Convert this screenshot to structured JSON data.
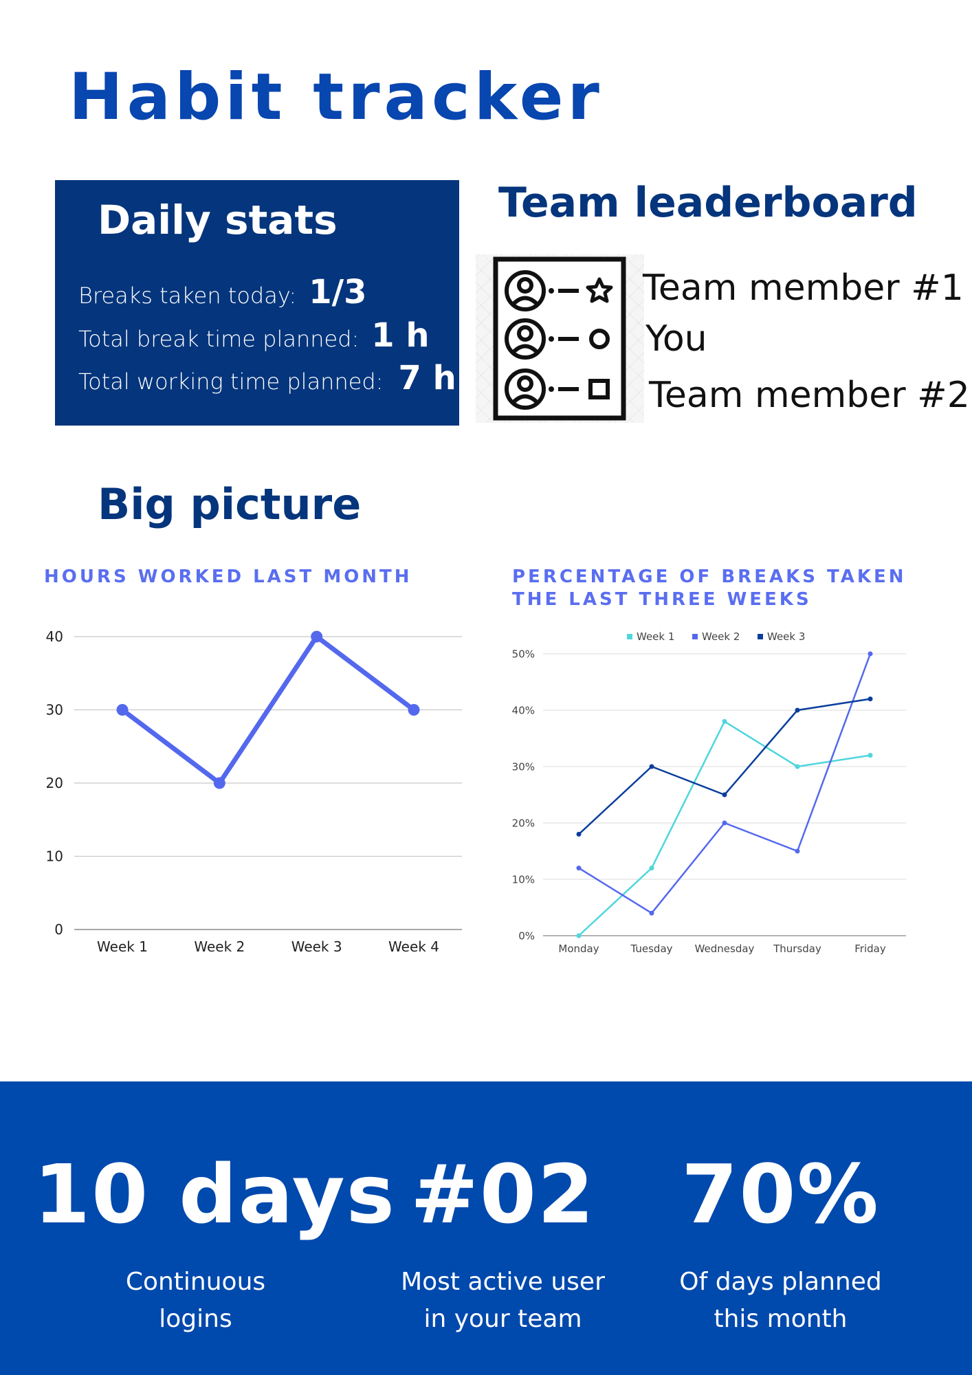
{
  "title": "Habit tracker",
  "daily_stats": {
    "heading": "Daily stats",
    "rows": [
      {
        "label": "Breaks taken today:",
        "value": "1/3"
      },
      {
        "label": "Total break time planned:",
        "value": "1 h"
      },
      {
        "label": "Total working time planned:",
        "value": "7 h"
      }
    ]
  },
  "leaderboard": {
    "heading": "Team leaderboard",
    "icon": "leaderboard-list-icon",
    "members": [
      "Team member #1",
      "You",
      "Team member #2"
    ]
  },
  "big_picture": {
    "heading": "Big picture"
  },
  "chart_data": [
    {
      "type": "line",
      "title": "HOURS WORKED LAST MONTH",
      "categories": [
        "Week 1",
        "Week 2",
        "Week 3",
        "Week 4"
      ],
      "series": [
        {
          "values": [
            30,
            20,
            40,
            30
          ]
        }
      ],
      "ylim": [
        0,
        40
      ],
      "yticks": [
        "0",
        "10",
        "20",
        "30",
        "40"
      ],
      "xlabel": "",
      "ylabel": "",
      "grid": true,
      "colors": [
        "#5468ee"
      ]
    },
    {
      "type": "line",
      "title": "PERCENTAGE OF BREAKS TAKEN THE LAST THREE WEEKS",
      "categories": [
        "Monday",
        "Tuesday",
        "Wednesday",
        "Thursday",
        "Friday"
      ],
      "series": [
        {
          "name": "Week 1",
          "values": [
            0,
            12,
            38,
            30,
            32
          ]
        },
        {
          "name": "Week 2",
          "values": [
            12,
            4,
            20,
            15,
            50
          ]
        },
        {
          "name": "Week 3",
          "values": [
            18,
            30,
            25,
            40,
            42
          ]
        }
      ],
      "ylim": [
        0,
        50
      ],
      "yticks": [
        "0%",
        "10%",
        "20%",
        "30%",
        "40%",
        "50%"
      ],
      "xlabel": "",
      "ylabel": "",
      "grid": true,
      "legend": "top",
      "colors": [
        "#4fd6dd",
        "#5468ee",
        "#0a3e9c"
      ]
    }
  ],
  "footer": {
    "kpis": [
      {
        "value": "10 days",
        "desc_line1": "Continuous",
        "desc_line2": "logins"
      },
      {
        "value": "#02",
        "desc_line1": "Most active user",
        "desc_line2": "in your team"
      },
      {
        "value": "70%",
        "desc_line1": "Of days planned",
        "desc_line2": "this month"
      }
    ]
  }
}
